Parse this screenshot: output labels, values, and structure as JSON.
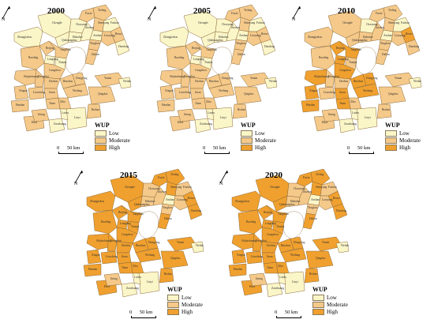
{
  "panels": [
    {
      "year": "2000"
    },
    {
      "year": "2005"
    },
    {
      "year": "2010"
    },
    {
      "year": "2015"
    },
    {
      "year": "2020"
    }
  ],
  "legend": {
    "title": "WUP",
    "items": [
      {
        "label": "Low",
        "color": "#fbf6c8"
      },
      {
        "label": "Moderate",
        "color": "#f5c98a"
      },
      {
        "label": "High",
        "color": "#f0a02e"
      }
    ]
  },
  "scale": {
    "zero": "0",
    "distance": "50 km"
  },
  "north_label": "N",
  "city_labels": [
    "Tieling",
    "Fuxin",
    "Shenyang",
    "Fushun",
    "Chaoyang",
    "Jinzhou",
    "Benxi",
    "Huludao",
    "Anshan",
    "Liaoyang",
    "Dandong",
    "Yingkou",
    "Chengde",
    "Zhangjiakou",
    "Qinhuangdao",
    "Dalian",
    "Beijing",
    "Tangshan",
    "Langfang",
    "Tianjin",
    "Baoding",
    "Cangzhou",
    "Shijiazhuang",
    "Hengshui",
    "Dezhou",
    "Binzhou",
    "Dongying",
    "Yantai",
    "Xingtai",
    "Liaocheng",
    "Jinan",
    "Weifang",
    "Qingdao",
    "Handan",
    "Heze",
    "Taian",
    "Zibo",
    "Rizhao",
    "Jining",
    "Zaozhuang",
    "Linyi",
    "Laiwu",
    "Weihai"
  ],
  "map_levels": {
    "2000": [
      1,
      1,
      1,
      0,
      0,
      0,
      1,
      0,
      0,
      1,
      0,
      1,
      0,
      0,
      0,
      1,
      1,
      1,
      0,
      0,
      1,
      1,
      1,
      1,
      1,
      1,
      1,
      1,
      1,
      1,
      1,
      1,
      1,
      1,
      1,
      1,
      1,
      1,
      1,
      0,
      0
    ],
    "2005": [
      1,
      1,
      1,
      0,
      0,
      0,
      1,
      0,
      0,
      1,
      0,
      1,
      0,
      0,
      0,
      1,
      1,
      1,
      0,
      0,
      1,
      1,
      1,
      1,
      1,
      1,
      1,
      1,
      1,
      1,
      1,
      1,
      1,
      1,
      1,
      1,
      1,
      1,
      1,
      0,
      0
    ],
    "2010": [
      1,
      1,
      1,
      0,
      0,
      1,
      2,
      1,
      0,
      1,
      1,
      1,
      1,
      1,
      1,
      1,
      2,
      2,
      2,
      1,
      1,
      2,
      2,
      1,
      1,
      2,
      2,
      1,
      2,
      1,
      2,
      2,
      1,
      2,
      1,
      2,
      1,
      1,
      1,
      0,
      0
    ],
    "2015": [
      2,
      2,
      2,
      1,
      1,
      1,
      2,
      1,
      0,
      1,
      2,
      1,
      2,
      2,
      2,
      2,
      2,
      2,
      2,
      2,
      2,
      2,
      2,
      2,
      2,
      2,
      2,
      2,
      2,
      2,
      2,
      2,
      2,
      2,
      2,
      2,
      2,
      2,
      1,
      0,
      0
    ],
    "2020": [
      2,
      2,
      2,
      1,
      1,
      1,
      2,
      1,
      0,
      1,
      2,
      1,
      2,
      2,
      2,
      2,
      2,
      2,
      2,
      2,
      2,
      2,
      2,
      2,
      2,
      2,
      2,
      2,
      2,
      2,
      2,
      2,
      2,
      2,
      2,
      2,
      2,
      2,
      1,
      0,
      0
    ]
  }
}
